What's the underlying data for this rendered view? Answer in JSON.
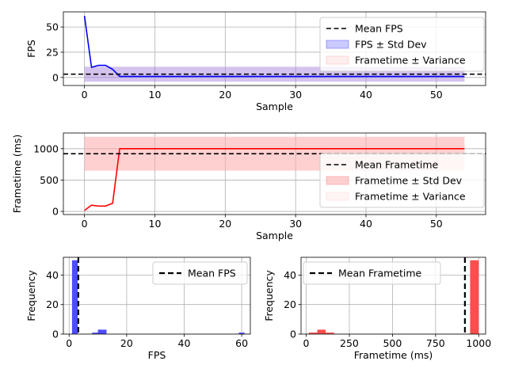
{
  "chart_data": [
    {
      "id": "fps_timeseries",
      "type": "line",
      "xlabel": "Sample",
      "ylabel": "FPS",
      "xlim": [
        -3,
        57
      ],
      "ylim": [
        -8,
        65
      ],
      "xticks": [
        0,
        10,
        20,
        30,
        40,
        50
      ],
      "yticks": [
        0,
        25,
        50
      ],
      "grid": true,
      "series": [
        {
          "name": "FPS",
          "color": "#0000ff",
          "x": [
            0,
            1,
            2,
            3,
            4,
            5,
            6,
            10,
            20,
            30,
            40,
            54
          ],
          "y": [
            61,
            10,
            12,
            12,
            8,
            1,
            1,
            1,
            1,
            1,
            1,
            1
          ]
        }
      ],
      "hline": {
        "name": "Mean FPS",
        "value": 3.2,
        "style": "dashed",
        "color": "#000000"
      },
      "bands": [
        {
          "name": "FPS ± Std Dev",
          "x": [
            0,
            54
          ],
          "y": [
            -4.2,
            10.6
          ],
          "color": "#6666ff"
        },
        {
          "name": "Frametime ± Variance",
          "x": [
            0,
            54
          ],
          "y": [
            -4.2,
            10.6
          ],
          "color": "#ffaaaa"
        }
      ],
      "legend": [
        "Mean FPS",
        "FPS ± Std Dev",
        "Frametime ± Variance"
      ],
      "legend_loc": "upper right"
    },
    {
      "id": "frametime_timeseries",
      "type": "line",
      "xlabel": "Sample",
      "ylabel": "Frametime (ms)",
      "xlim": [
        -3,
        57
      ],
      "ylim": [
        -50,
        1250
      ],
      "xticks": [
        0,
        10,
        20,
        30,
        40,
        50
      ],
      "yticks": [
        0,
        500,
        1000
      ],
      "grid": true,
      "series": [
        {
          "name": "Frametime",
          "color": "#ff0000",
          "x": [
            0,
            1,
            2,
            3,
            4,
            5,
            6,
            10,
            20,
            30,
            40,
            54
          ],
          "y": [
            15,
            100,
            85,
            85,
            130,
            1000,
            1000,
            1000,
            1000,
            1000,
            1000,
            1000
          ]
        }
      ],
      "hline": {
        "name": "Mean Frametime",
        "value": 920,
        "style": "dashed",
        "color": "#000000"
      },
      "bands": [
        {
          "name": "Frametime ± Std Dev",
          "x": [
            0,
            54
          ],
          "y": [
            650,
            1190
          ],
          "color": "#ff9999"
        },
        {
          "name": "Frametime ± Variance",
          "x": [
            0,
            54
          ],
          "y": [
            650,
            1190
          ],
          "color": "#ffcccc"
        }
      ],
      "legend": [
        "Mean Frametime",
        "Frametime ± Std Dev",
        "Frametime ± Variance"
      ],
      "legend_loc": "lower right"
    },
    {
      "id": "fps_histogram",
      "type": "bar",
      "xlabel": "FPS",
      "ylabel": "Frequency",
      "xlim": [
        -2,
        63
      ],
      "ylim": [
        0,
        52
      ],
      "xticks": [
        0,
        20,
        40,
        60
      ],
      "yticks": [
        0,
        20,
        40
      ],
      "grid": true,
      "bins": [
        {
          "x0": 1,
          "x1": 3,
          "count": 50
        },
        {
          "x0": 6,
          "x1": 8,
          "count": 0
        },
        {
          "x0": 8,
          "x1": 10,
          "count": 1
        },
        {
          "x0": 10,
          "x1": 13,
          "count": 3
        },
        {
          "x0": 59,
          "x1": 61,
          "count": 1
        }
      ],
      "bar_color": "#4d4dff",
      "vline": {
        "name": "Mean FPS",
        "value": 3.2,
        "style": "dashed",
        "color": "#000000"
      },
      "legend": [
        "Mean FPS"
      ],
      "legend_loc": "upper right"
    },
    {
      "id": "frametime_histogram",
      "type": "bar",
      "xlabel": "Frametime (ms)",
      "ylabel": "Frequency",
      "xlim": [
        -30,
        1040
      ],
      "ylim": [
        0,
        52
      ],
      "xticks": [
        0,
        250,
        500,
        750,
        1000
      ],
      "yticks": [
        0,
        20,
        40
      ],
      "grid": true,
      "bins": [
        {
          "x0": 15,
          "x1": 64,
          "count": 1
        },
        {
          "x0": 64,
          "x1": 113,
          "count": 3
        },
        {
          "x0": 113,
          "x1": 162,
          "count": 1
        },
        {
          "x0": 950,
          "x1": 1000,
          "count": 50
        }
      ],
      "bar_color": "#ff4d4d",
      "vline": {
        "name": "Mean Frametime",
        "value": 920,
        "style": "dashed",
        "color": "#000000"
      },
      "legend": [
        "Mean Frametime"
      ],
      "legend_loc": "upper left"
    }
  ]
}
